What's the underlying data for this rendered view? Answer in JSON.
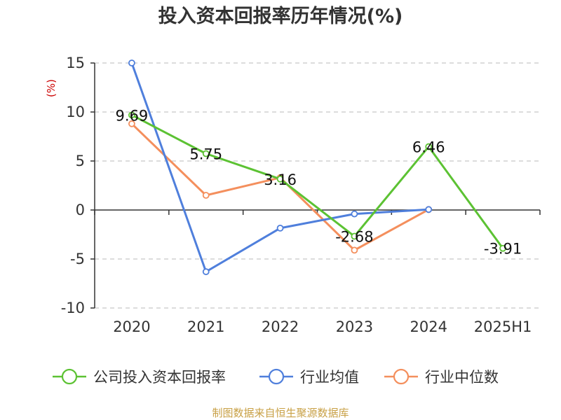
{
  "chart_data": {
    "type": "line",
    "title": "投入资本回报率历年情况(%)",
    "ylabel": "(%)",
    "categories": [
      "2020",
      "2021",
      "2022",
      "2023",
      "2024",
      "2025H1"
    ],
    "ylim": [
      -10,
      15
    ],
    "yticks": [
      15,
      10,
      5,
      0,
      -5,
      -10
    ],
    "grid": true,
    "legend_position": "bottom",
    "series": [
      {
        "name": "公司投入资本回报率",
        "color": "#5cc233",
        "values": [
          9.69,
          5.75,
          3.16,
          -2.68,
          6.46,
          -3.91
        ],
        "labels": [
          "9.69",
          "5.75",
          "3.16",
          "-2.68",
          "6.46",
          "-3.91"
        ]
      },
      {
        "name": "行业均值",
        "color": "#4f7fdc",
        "values": [
          15.0,
          -6.3,
          -1.85,
          -0.4,
          0.05,
          null
        ]
      },
      {
        "name": "行业中位数",
        "color": "#f48f5d",
        "values": [
          8.8,
          1.5,
          3.3,
          -4.1,
          0.05,
          null
        ]
      }
    ]
  },
  "footer": {
    "source": "制图数据来自恒生聚源数据库"
  }
}
